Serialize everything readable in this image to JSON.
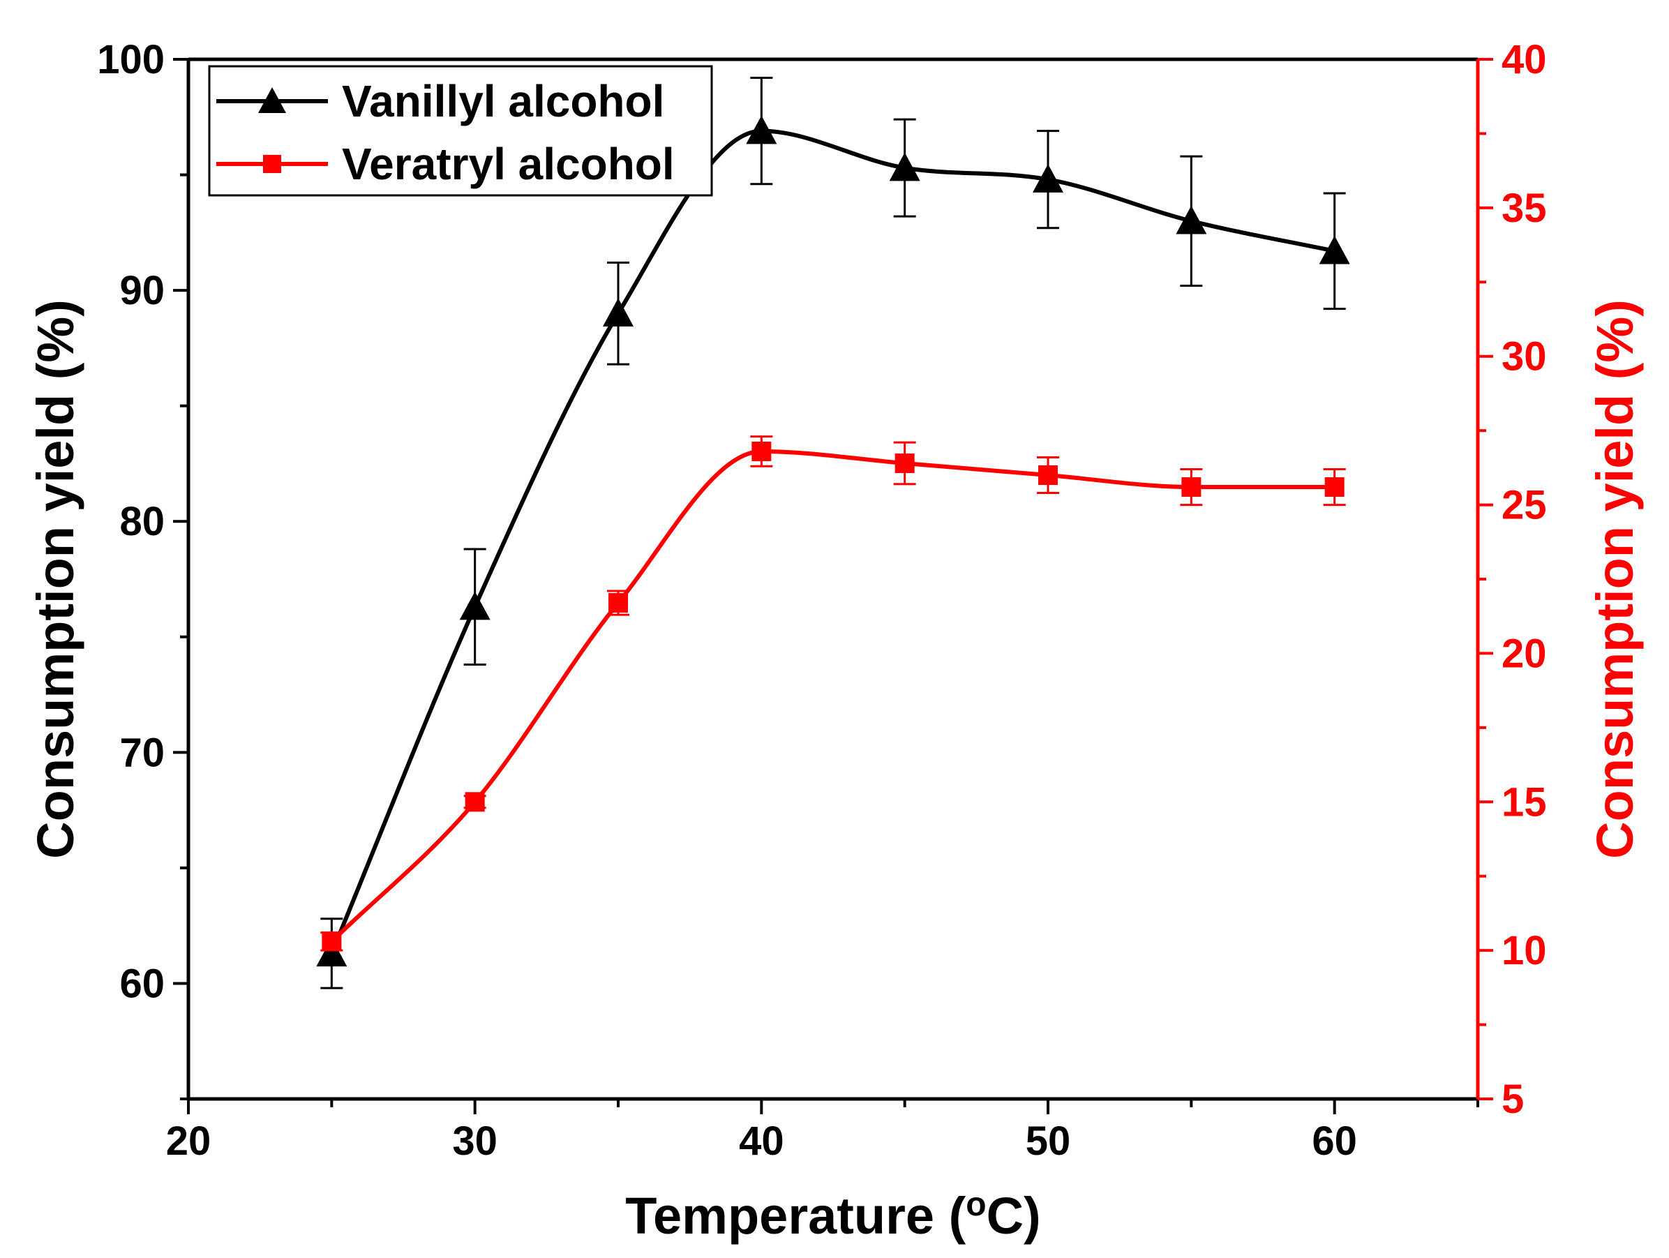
{
  "chart_data": {
    "type": "line",
    "x": [
      25,
      30,
      35,
      40,
      45,
      50,
      55,
      60
    ],
    "xlabel": "Temperature (",
    "xlabel_unit_sup": "o",
    "xlabel_unit": "C)",
    "xlim": [
      20,
      65
    ],
    "x_ticks": [
      20,
      30,
      40,
      50,
      60
    ],
    "y_left": {
      "label": "Consumption yield (%)",
      "lim": [
        55,
        100
      ],
      "ticks": [
        60,
        70,
        80,
        90,
        100
      ],
      "color": "#000000"
    },
    "y_right": {
      "label": "Consumption yield (%)",
      "lim": [
        5,
        40
      ],
      "ticks": [
        5,
        10,
        15,
        20,
        25,
        30,
        35,
        40
      ],
      "color": "#ff0000"
    },
    "series": [
      {
        "name": "Vanillyl alcohol",
        "axis": "left",
        "color": "#000000",
        "marker": "triangle",
        "values": [
          61.3,
          76.3,
          89.0,
          96.9,
          95.3,
          94.8,
          93.0,
          91.7
        ],
        "errors": [
          1.5,
          2.5,
          2.2,
          2.3,
          2.1,
          2.1,
          2.8,
          2.5
        ]
      },
      {
        "name": "Veratryl alcohol",
        "axis": "right",
        "color": "#ff0000",
        "marker": "square",
        "values": [
          10.3,
          15.0,
          21.7,
          26.8,
          26.4,
          26.0,
          25.6,
          25.6
        ],
        "errors": [
          0.3,
          0.2,
          0.4,
          0.5,
          0.7,
          0.6,
          0.6,
          0.6
        ]
      }
    ],
    "legend": "top-left"
  }
}
